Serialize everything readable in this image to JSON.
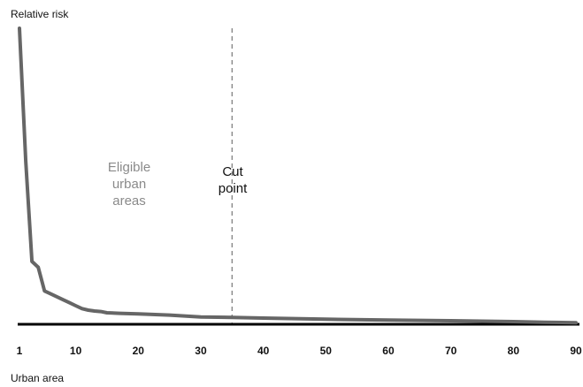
{
  "chart_data": {
    "type": "line",
    "title": "",
    "ylabel": "Relative risk",
    "xlabel": "Urban area",
    "xlim": [
      1,
      90
    ],
    "ylim": [
      0,
      100
    ],
    "xticks": [
      1,
      10,
      20,
      30,
      40,
      50,
      60,
      70,
      80,
      90
    ],
    "grid": false,
    "series": [
      {
        "x": [
          1,
          2,
          3,
          4,
          5,
          6,
          7,
          8,
          9,
          10,
          11,
          12,
          13,
          14,
          15,
          17,
          20,
          25,
          30,
          35,
          40,
          50,
          60,
          70,
          80,
          85,
          90
        ],
        "y": [
          100,
          55,
          21,
          19,
          11,
          10,
          9,
          8,
          7,
          6,
          5,
          4.5,
          4.2,
          4,
          3.6,
          3.4,
          3.2,
          2.8,
          2.2,
          2,
          1.8,
          1.4,
          1.1,
          0.9,
          0.6,
          0.4,
          0.2
        ]
      }
    ],
    "cut_point_x": 35,
    "annotations": {
      "eligible": [
        "Eligible",
        "urban",
        "areas"
      ],
      "cut": [
        "Cut",
        "point"
      ]
    }
  },
  "colors": {
    "curve": "#666666",
    "baseline": "#000000",
    "cut_line": "#777777",
    "eligible_text": "#8a8a8a"
  }
}
